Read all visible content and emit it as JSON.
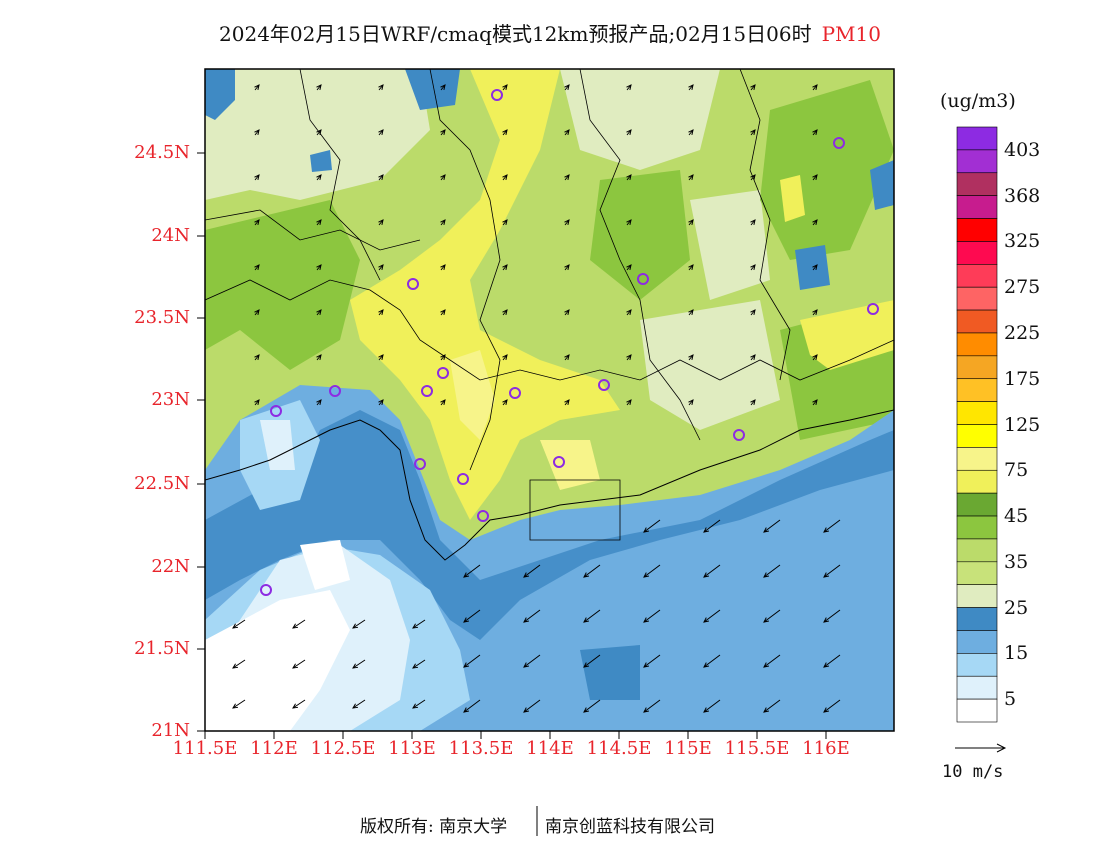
{
  "title": "2024年02月15日WRF/cmaq模式12km预报产品;02月15日06时",
  "species": "PM10",
  "unit": "(ug/m3)",
  "colorbar": {
    "levels": [
      "403",
      "368",
      "325",
      "275",
      "225",
      "175",
      "125",
      "75",
      "45",
      "35",
      "25",
      "15",
      "5"
    ],
    "colors": [
      "#8d2be2",
      "#a22fd3",
      "#b03060",
      "#c71c8e",
      "#ff0000",
      "#fe0a50",
      "#fe3c58",
      "#fe6464",
      "#f05a23",
      "#ff8c00",
      "#f5a623",
      "#ffc125",
      "#ffe600",
      "#ffff00",
      "#f7f48a",
      "#f0f05a",
      "#6aa832",
      "#8cc63f",
      "#bbdb6a",
      "#c8e27a",
      "#e0ecc0",
      "#3f8ac4",
      "#6eaee0",
      "#a6d8f5",
      "#dff1fb",
      "#ffffff"
    ]
  },
  "axes": {
    "y_ticks": [
      "24.5N",
      "24N",
      "23.5N",
      "23N",
      "22.5N",
      "22N",
      "21.5N",
      "21N"
    ],
    "x_ticks": [
      "111.5E",
      "112E",
      "112.5E",
      "113E",
      "113.5E",
      "114E",
      "114.5E",
      "115E",
      "115.5E",
      "116E"
    ]
  },
  "wind_reference": "10 m/s",
  "footer": {
    "left": "版权所有: 南京大学",
    "right": "南京创蓝科技有限公司"
  }
}
